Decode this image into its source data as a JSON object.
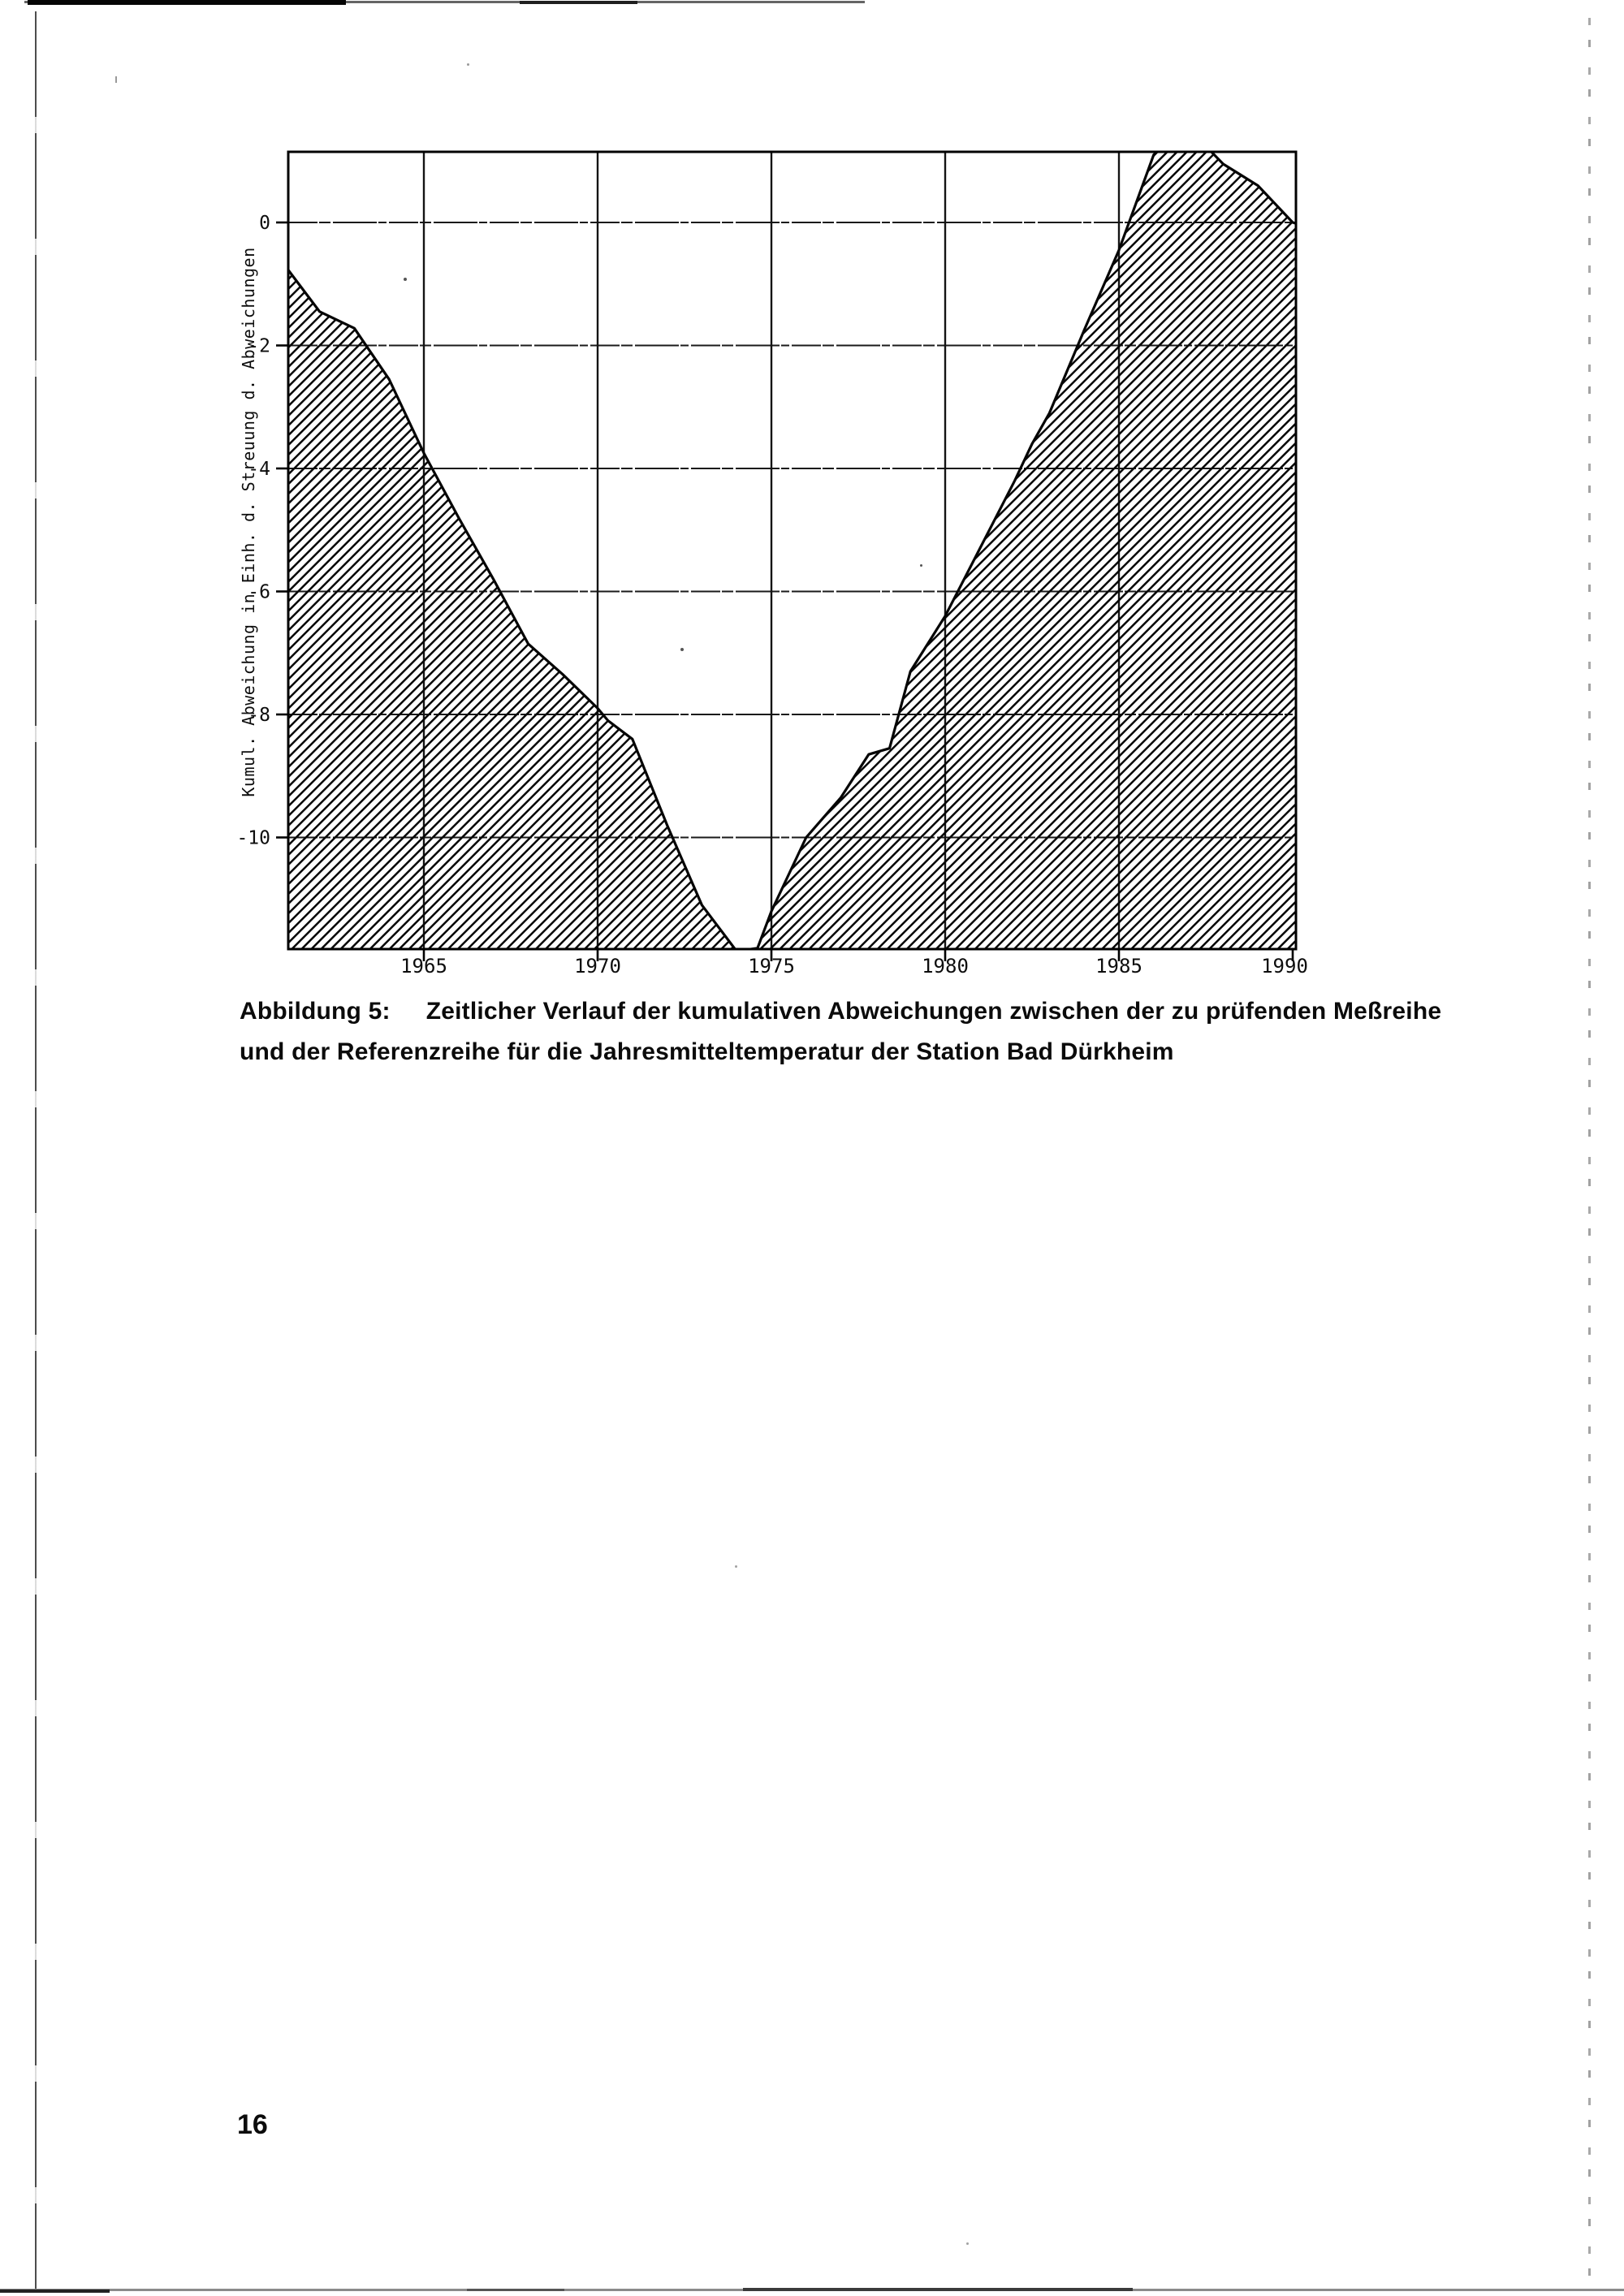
{
  "page": {
    "number": "16"
  },
  "figure": {
    "caption_label": "Abbildung 5:",
    "caption_lines": [
      "Zeitlicher Verlauf der kumulativen Abweichungen zwischen der zu prüfenden Meßreihe",
      "und der Referenzreihe für die Jahresmitteltemperatur der Station Bad Dürkheim"
    ]
  },
  "chart_data": {
    "type": "area",
    "title": "Abbildung 5: Zeitlicher Verlauf der kumulativen Abweichungen zwischen der zu prüfenden Meßreihe und der Referenzreihe für die Jahresmitteltemperatur der Station Bad Dürkheim",
    "xlabel": "",
    "ylabel": "Kumul. Abweichung in Einh. d. Streuung d. Abweichungen",
    "x_ticks": [
      1965,
      1970,
      1975,
      1980,
      1985,
      1990
    ],
    "y_ticks": [
      0,
      -2,
      -4,
      -6,
      -8,
      -10
    ],
    "xlim": [
      1961,
      1990.3
    ],
    "ylim": [
      -11.9,
      1.2
    ],
    "grid": true,
    "legend": false,
    "fill_style": "diagonal-hatch",
    "x": [
      1961,
      1962,
      1963,
      1964,
      1965,
      1966,
      1967,
      1968,
      1969,
      1970,
      1970.3,
      1971,
      1972,
      1973,
      1974,
      1974.6,
      1975,
      1976,
      1977,
      1977.8,
      1978.4,
      1979,
      1980,
      1981,
      1982,
      1982.5,
      1983,
      1984,
      1985,
      1986,
      1986.5,
      1987.4,
      1988,
      1989,
      1990,
      1990.3
    ],
    "values": [
      -0.7,
      -1.45,
      -1.72,
      -2.55,
      -3.75,
      -4.8,
      -5.8,
      -6.85,
      -7.35,
      -7.9,
      -8.1,
      -8.4,
      -9.8,
      -11.1,
      -11.85,
      -11.8,
      -11.2,
      -10.0,
      -9.35,
      -8.65,
      -8.55,
      -7.3,
      -6.4,
      -5.3,
      -4.2,
      -3.6,
      -3.1,
      -1.75,
      -0.45,
      1.1,
      1.35,
      1.3,
      0.95,
      0.6,
      0.0,
      -0.05
    ]
  }
}
